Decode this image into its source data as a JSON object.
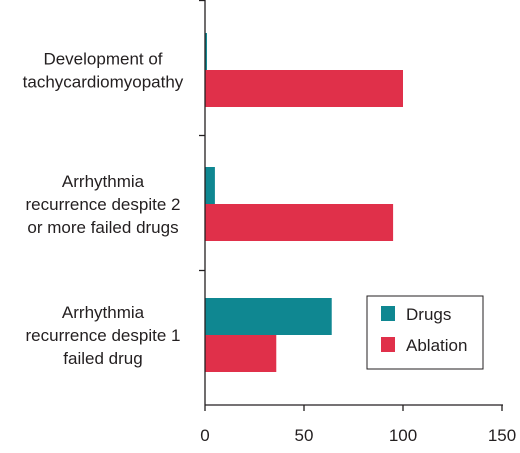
{
  "chart_data": {
    "type": "bar",
    "orientation": "horizontal",
    "categories": [
      [
        "Development of",
        "tachycardiomyopathy"
      ],
      [
        "Arrhythmia",
        "recurrence despite 2",
        "or more failed drugs"
      ],
      [
        "Arrhythmia",
        "recurrence despite 1",
        "failed drug"
      ]
    ],
    "series": [
      {
        "name": "Drugs",
        "values": [
          1,
          5,
          64
        ],
        "color": "#0f8791"
      },
      {
        "name": "Ablation",
        "values": [
          100,
          95,
          36
        ],
        "color": "#e0304a"
      }
    ],
    "xlim": [
      0,
      150
    ],
    "xticks": [
      "0",
      "50",
      "100",
      "150"
    ],
    "grid": false,
    "legend_position": "bottom-right"
  }
}
